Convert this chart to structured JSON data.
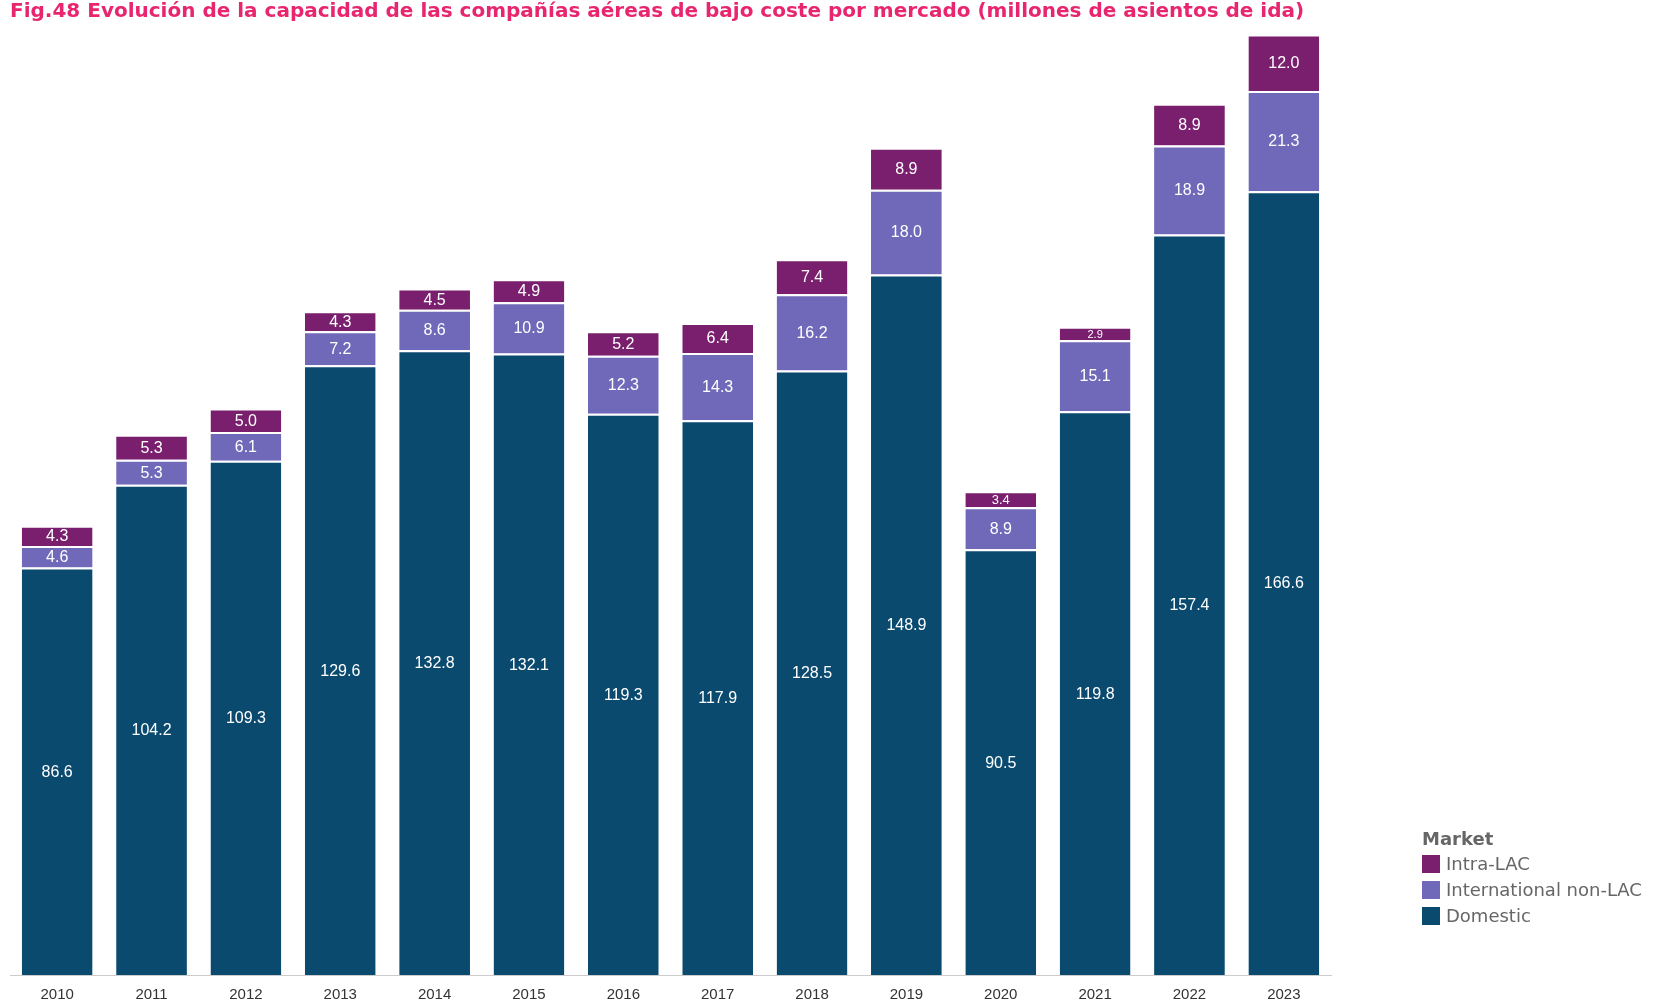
{
  "chart_data": {
    "type": "bar",
    "stacked": true,
    "title": "Fig.48 Evolución de la capacidad de las compañías aéreas de bajo coste por mercado (millones de asientos de ida)",
    "legend_title": "Market",
    "legend": "bottom right",
    "tick_labels": "x",
    "grid": false,
    "categories": [
      "2010",
      "2011",
      "2012",
      "2013",
      "2014",
      "2015",
      "2016",
      "2017",
      "2018",
      "2019",
      "2020",
      "2021",
      "2022",
      "2023"
    ],
    "series": [
      {
        "name": "Domestic",
        "color": "#0b4a6f",
        "values": [
          86.6,
          104.2,
          109.3,
          129.6,
          132.8,
          132.1,
          119.3,
          117.9,
          128.5,
          148.9,
          90.5,
          119.8,
          157.4,
          166.6
        ],
        "value_labels": [
          "86.6",
          "104.2",
          "109.3",
          "129.6",
          "132.8",
          "132.1",
          "119.3",
          "117.9",
          "128.5",
          "148.9",
          "90.5",
          "119.8",
          "157.4",
          "166.6"
        ]
      },
      {
        "name": "International non-LAC",
        "color": "#7068b8",
        "values": [
          4.6,
          5.3,
          6.1,
          7.2,
          8.6,
          10.9,
          12.3,
          14.3,
          16.2,
          18.0,
          8.9,
          15.1,
          18.9,
          21.3
        ],
        "value_labels": [
          "4.6",
          "5.3",
          "6.1",
          "7.2",
          "8.6",
          "10.9",
          "12.3",
          "14.3",
          "16.2",
          "18.0",
          "8.9",
          "15.1",
          "18.9",
          "21.3"
        ]
      },
      {
        "name": "Intra-LAC",
        "color": "#7a1f6e",
        "values": [
          4.3,
          5.3,
          5.0,
          4.3,
          4.5,
          4.9,
          5.2,
          6.4,
          7.4,
          8.9,
          3.4,
          2.9,
          8.9,
          12.0
        ],
        "value_labels": [
          "4.3",
          "5.3",
          "5.0",
          "4.3",
          "4.5",
          "4.9",
          "5.2",
          "6.4",
          "7.4",
          "8.9",
          "3.4",
          "2.9",
          "8.9",
          "12.0"
        ]
      }
    ]
  }
}
